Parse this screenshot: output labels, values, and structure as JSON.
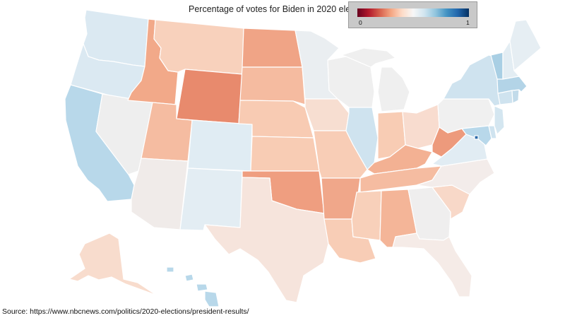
{
  "title": "Percentage of votes for Biden in 2020 election",
  "source": "Source: https://www.nbcnews.com/politics/2020-elections/president-results/",
  "legend": {
    "min_label": "0",
    "max_label": "1",
    "gradient_colors": [
      "#67001f",
      "#b2182b",
      "#d6604d",
      "#f4a582",
      "#fddbc7",
      "#f7f7f7",
      "#d1e5f0",
      "#92c5de",
      "#4393c3",
      "#2166ac",
      "#053061"
    ]
  },
  "map_data": {
    "type": "choropleth",
    "measure": "share of votes for Biden",
    "color_scale": "red-white-blue diverging, 0 to 1",
    "states": [
      {
        "id": "WA",
        "name": "Washington",
        "color": "#dbe9f2"
      },
      {
        "id": "OR",
        "name": "Oregon",
        "color": "#dbe9f2"
      },
      {
        "id": "CA",
        "name": "California",
        "color": "#b8d8ea"
      },
      {
        "id": "NV",
        "name": "Nevada",
        "color": "#eeeeee"
      },
      {
        "id": "ID",
        "name": "Idaho",
        "color": "#f2a989"
      },
      {
        "id": "MT",
        "name": "Montana",
        "color": "#f8d1bc"
      },
      {
        "id": "WY",
        "name": "Wyoming",
        "color": "#e88a6d"
      },
      {
        "id": "UT",
        "name": "Utah",
        "color": "#f5bca1"
      },
      {
        "id": "AZ",
        "name": "Arizona",
        "color": "#f0ebe9"
      },
      {
        "id": "CO",
        "name": "Colorado",
        "color": "#e0ecf3"
      },
      {
        "id": "NM",
        "name": "New Mexico",
        "color": "#e3edf3"
      },
      {
        "id": "ND",
        "name": "North Dakota",
        "color": "#f0a486"
      },
      {
        "id": "SD",
        "name": "South Dakota",
        "color": "#f5bba0"
      },
      {
        "id": "NE",
        "name": "Nebraska",
        "color": "#f8cbb3"
      },
      {
        "id": "KS",
        "name": "Kansas",
        "color": "#f8ccb4"
      },
      {
        "id": "OK",
        "name": "Oklahoma",
        "color": "#ef9e80"
      },
      {
        "id": "TX",
        "name": "Texas",
        "color": "#f6e4dc"
      },
      {
        "id": "MN",
        "name": "Minnesota",
        "color": "#eaeef1"
      },
      {
        "id": "IA",
        "name": "Iowa",
        "color": "#f7ded1"
      },
      {
        "id": "MO",
        "name": "Missouri",
        "color": "#f8cdb6"
      },
      {
        "id": "AR",
        "name": "Arkansas",
        "color": "#f0a78a"
      },
      {
        "id": "LA",
        "name": "Louisiana",
        "color": "#f8cdb6"
      },
      {
        "id": "WI",
        "name": "Wisconsin",
        "color": "#efefef"
      },
      {
        "id": "IL",
        "name": "Illinois",
        "color": "#cfe3ef"
      },
      {
        "id": "MI",
        "name": "Michigan",
        "color": "#efefef"
      },
      {
        "id": "IN",
        "name": "Indiana",
        "color": "#f8ccb4"
      },
      {
        "id": "OH",
        "name": "Ohio",
        "color": "#f8dccf"
      },
      {
        "id": "KY",
        "name": "Kentucky",
        "color": "#f3b193"
      },
      {
        "id": "TN",
        "name": "Tennessee",
        "color": "#f5bca1"
      },
      {
        "id": "MS",
        "name": "Mississippi",
        "color": "#f8d0ba"
      },
      {
        "id": "AL",
        "name": "Alabama",
        "color": "#f4b598"
      },
      {
        "id": "GA",
        "name": "Georgia",
        "color": "#efeeee"
      },
      {
        "id": "FL",
        "name": "Florida",
        "color": "#f5ebe7"
      },
      {
        "id": "SC",
        "name": "South Carolina",
        "color": "#f8d8c8"
      },
      {
        "id": "NC",
        "name": "North Carolina",
        "color": "#f3ecea"
      },
      {
        "id": "VA",
        "name": "Virginia",
        "color": "#e1ecf3"
      },
      {
        "id": "WV",
        "name": "West Virginia",
        "color": "#ed9a7c"
      },
      {
        "id": "PA",
        "name": "Pennsylvania",
        "color": "#f0f0f0"
      },
      {
        "id": "NY",
        "name": "New York",
        "color": "#cfe3ef"
      },
      {
        "id": "VT",
        "name": "Vermont",
        "color": "#a9cfe4"
      },
      {
        "id": "NH",
        "name": "New Hampshire",
        "color": "#e3edf3"
      },
      {
        "id": "ME",
        "name": "Maine",
        "color": "#e6eef3"
      },
      {
        "id": "MA",
        "name": "Massachusetts",
        "color": "#b3d4e7"
      },
      {
        "id": "RI",
        "name": "Rhode Island",
        "color": "#c2dbea"
      },
      {
        "id": "CT",
        "name": "Connecticut",
        "color": "#cfe3ef"
      },
      {
        "id": "NJ",
        "name": "New Jersey",
        "color": "#d4e6f0"
      },
      {
        "id": "DE",
        "name": "Delaware",
        "color": "#cfe3ef"
      },
      {
        "id": "MD",
        "name": "Maryland",
        "color": "#b8d8ea"
      },
      {
        "id": "DC",
        "name": "District of Columbia",
        "color": "#2c6aa8"
      },
      {
        "id": "AK",
        "name": "Alaska",
        "color": "#f8dccd"
      },
      {
        "id": "HI",
        "name": "Hawaii",
        "color": "#b8d8ea"
      }
    ]
  }
}
